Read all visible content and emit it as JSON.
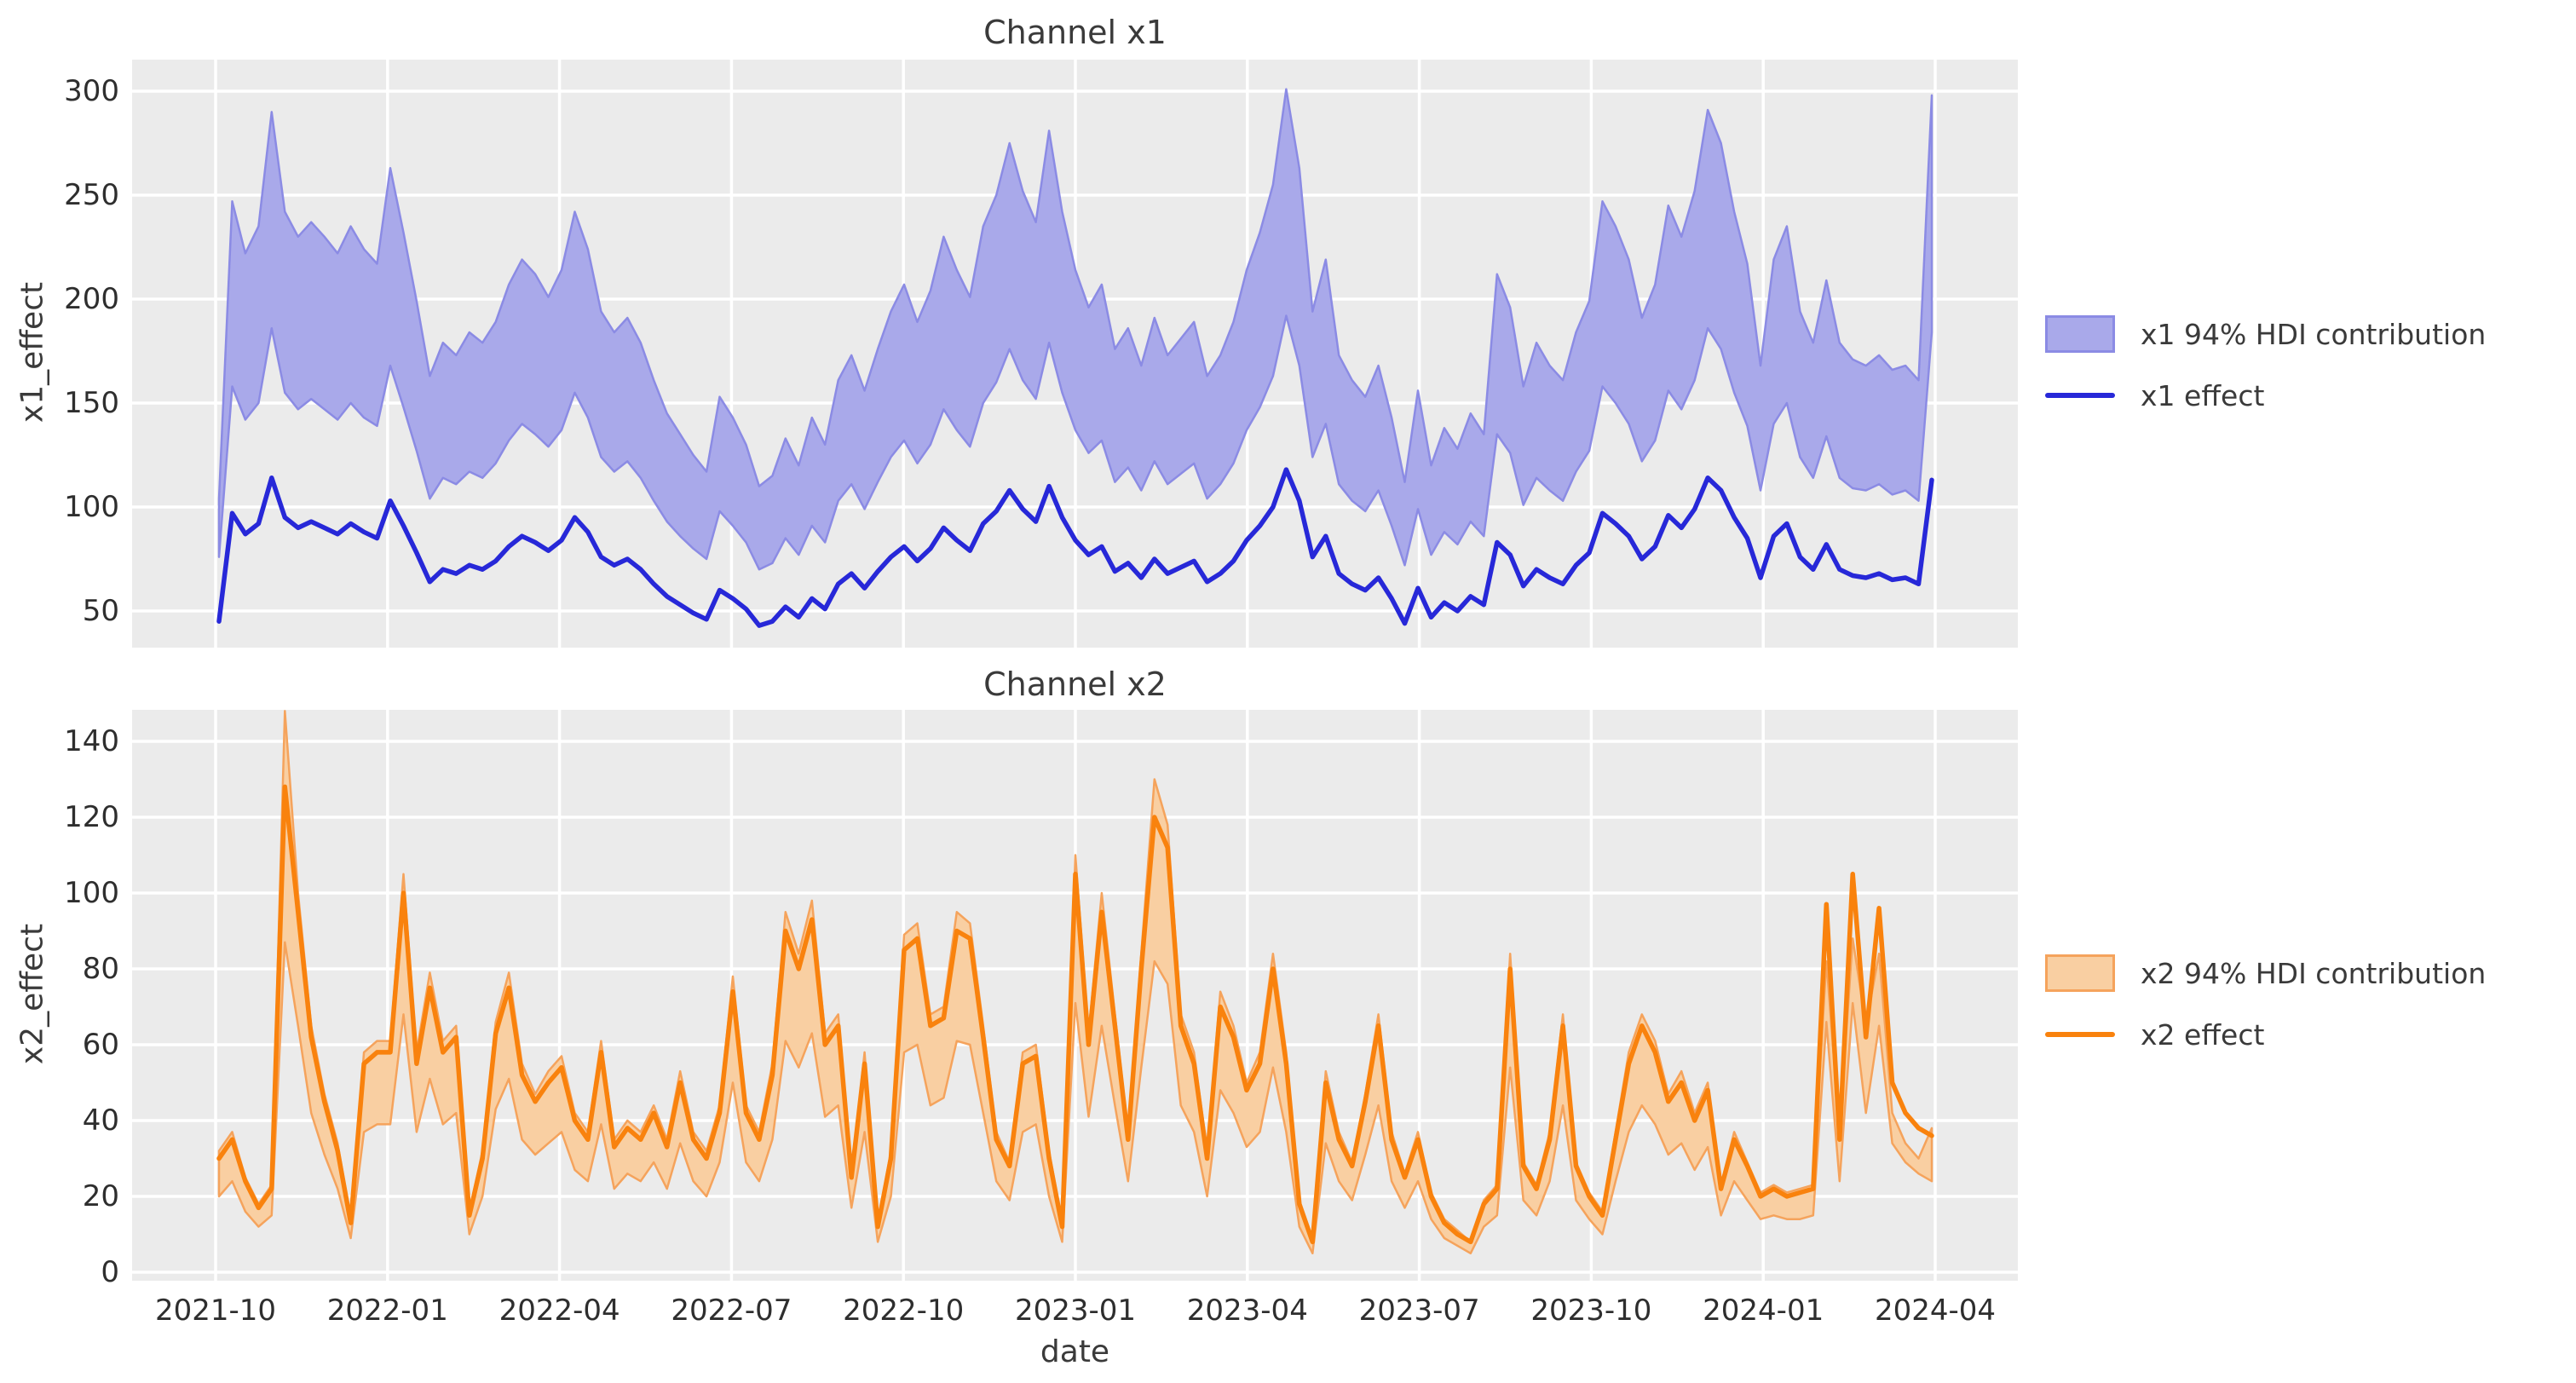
{
  "figure": {
    "background": "#ffffff",
    "axes_background": "#ebebeb",
    "grid_color": "#ffffff",
    "text_color": "#3a3a3a"
  },
  "chart_data": [
    {
      "type": "area",
      "title": "Channel x1",
      "ylabel": "x1_effect",
      "xlabel": "date",
      "grid": true,
      "legend_position": "right-of-plot",
      "x_start": "2021-10-03",
      "x_freq": "weekly",
      "n_points": 131,
      "x_tick_labels": [
        "2021-10",
        "2022-01",
        "2022-04",
        "2022-07",
        "2022-10",
        "2023-01",
        "2023-04",
        "2023-07",
        "2023-10",
        "2024-01",
        "2024-04"
      ],
      "y_ticks": [
        50,
        100,
        150,
        200,
        250,
        300
      ],
      "ylim": [
        32,
        316
      ],
      "line_color": "#2728d8",
      "band_fill": "#a9a9ea",
      "band_edge": "#8b8be4",
      "series": [
        {
          "name": "x1 94% HDI contribution",
          "role": "band",
          "upper": [
            104,
            247,
            222,
            235,
            290,
            242,
            230,
            237,
            230,
            222,
            235,
            224,
            217,
            263,
            232,
            199,
            163,
            179,
            173,
            184,
            179,
            189,
            207,
            219,
            212,
            201,
            214,
            242,
            224,
            194,
            184,
            191,
            179,
            161,
            145,
            135,
            125,
            117,
            153,
            143,
            130,
            110,
            115,
            133,
            120,
            143,
            130,
            161,
            173,
            156,
            176,
            194,
            207,
            189,
            204,
            230,
            214,
            201,
            235,
            250,
            275,
            252,
            237,
            281,
            242,
            214,
            196,
            207,
            176,
            186,
            168,
            191,
            173,
            181,
            189,
            163,
            173,
            189,
            214,
            232,
            255,
            301,
            263,
            194,
            219,
            173,
            161,
            153,
            168,
            143,
            112,
            156,
            120,
            138,
            128,
            145,
            135,
            212,
            196,
            158,
            179,
            168,
            161,
            184,
            199,
            247,
            235,
            219,
            191,
            207,
            245,
            230,
            252,
            291,
            275,
            242,
            217,
            168,
            219,
            235,
            194,
            179,
            209,
            179,
            171,
            168,
            173,
            166,
            168,
            161,
            298
          ],
          "lower": [
            76,
            158,
            142,
            150,
            186,
            155,
            147,
            152,
            147,
            142,
            150,
            143,
            139,
            168,
            148,
            127,
            104,
            114,
            111,
            117,
            114,
            121,
            132,
            140,
            135,
            129,
            137,
            155,
            143,
            124,
            117,
            122,
            114,
            103,
            93,
            86,
            80,
            75,
            98,
            91,
            83,
            70,
            73,
            85,
            77,
            91,
            83,
            103,
            111,
            99,
            112,
            124,
            132,
            121,
            130,
            147,
            137,
            129,
            150,
            160,
            176,
            161,
            152,
            179,
            155,
            137,
            126,
            132,
            112,
            119,
            108,
            122,
            111,
            116,
            121,
            104,
            111,
            121,
            137,
            148,
            163,
            192,
            168,
            124,
            140,
            111,
            103,
            98,
            108,
            91,
            72,
            99,
            77,
            88,
            82,
            93,
            86,
            135,
            126,
            101,
            114,
            108,
            103,
            117,
            127,
            158,
            150,
            140,
            122,
            132,
            156,
            147,
            161,
            186,
            176,
            155,
            139,
            108,
            140,
            150,
            124,
            114,
            134,
            114,
            109,
            108,
            111,
            106,
            108,
            103,
            184
          ]
        },
        {
          "name": "x1 effect",
          "role": "line",
          "values": [
            45,
            97,
            87,
            92,
            114,
            95,
            90,
            93,
            90,
            87,
            92,
            88,
            85,
            103,
            91,
            78,
            64,
            70,
            68,
            72,
            70,
            74,
            81,
            86,
            83,
            79,
            84,
            95,
            88,
            76,
            72,
            75,
            70,
            63,
            57,
            53,
            49,
            46,
            60,
            56,
            51,
            43,
            45,
            52,
            47,
            56,
            51,
            63,
            68,
            61,
            69,
            76,
            81,
            74,
            80,
            90,
            84,
            79,
            92,
            98,
            108,
            99,
            93,
            110,
            95,
            84,
            77,
            81,
            69,
            73,
            66,
            75,
            68,
            71,
            74,
            64,
            68,
            74,
            84,
            91,
            100,
            118,
            103,
            76,
            86,
            68,
            63,
            60,
            66,
            56,
            44,
            61,
            47,
            54,
            50,
            57,
            53,
            83,
            77,
            62,
            70,
            66,
            63,
            72,
            78,
            97,
            92,
            86,
            75,
            81,
            96,
            90,
            99,
            114,
            108,
            95,
            85,
            66,
            86,
            92,
            76,
            70,
            82,
            70,
            67,
            66,
            68,
            65,
            66,
            63,
            113
          ]
        }
      ]
    },
    {
      "type": "area",
      "title": "Channel x2",
      "ylabel": "x2_effect",
      "xlabel": "date",
      "grid": true,
      "legend_position": "right-of-plot",
      "x_start": "2021-10-03",
      "x_freq": "weekly",
      "n_points": 131,
      "x_tick_labels": [
        "2021-10",
        "2022-01",
        "2022-04",
        "2022-07",
        "2022-10",
        "2023-01",
        "2023-04",
        "2023-07",
        "2023-10",
        "2024-01",
        "2024-04"
      ],
      "y_ticks": [
        0,
        20,
        40,
        60,
        80,
        100,
        120,
        140
      ],
      "ylim": [
        -2,
        148
      ],
      "line_color": "#f9820d",
      "band_fill": "#f9cfa2",
      "band_edge": "#f5a35c",
      "series": [
        {
          "name": "x2 94% HDI contribution",
          "role": "band",
          "upper": [
            32,
            37,
            25,
            18,
            23,
            148,
            100,
            65,
            47,
            34,
            14,
            58,
            61,
            61,
            105,
            58,
            79,
            61,
            65,
            16,
            32,
            66,
            79,
            55,
            47,
            53,
            57,
            42,
            37,
            61,
            35,
            40,
            37,
            44,
            35,
            53,
            37,
            32,
            44,
            78,
            44,
            37,
            55,
            95,
            84,
            98,
            63,
            68,
            26,
            58,
            13,
            32,
            89,
            92,
            68,
            70,
            95,
            92,
            65,
            37,
            29,
            58,
            60,
            32,
            13,
            110,
            63,
            100,
            68,
            37,
            84,
            130,
            118,
            68,
            58,
            32,
            74,
            65,
            50,
            58,
            84,
            58,
            19,
            8,
            53,
            37,
            29,
            47,
            68,
            37,
            26,
            37,
            21,
            14,
            11,
            8,
            19,
            23,
            84,
            29,
            23,
            37,
            68,
            29,
            21,
            16,
            37,
            58,
            68,
            61,
            47,
            53,
            42,
            50,
            23,
            37,
            29,
            21,
            23,
            21,
            22,
            23,
            82,
            37,
            88,
            65,
            84,
            42,
            34,
            30,
            38
          ],
          "lower": [
            20,
            24,
            16,
            12,
            15,
            87,
            65,
            42,
            31,
            22,
            9,
            37,
            39,
            39,
            68,
            37,
            51,
            39,
            42,
            10,
            20,
            43,
            51,
            35,
            31,
            34,
            37,
            27,
            24,
            39,
            22,
            26,
            24,
            29,
            22,
            34,
            24,
            20,
            29,
            50,
            29,
            24,
            35,
            61,
            54,
            63,
            41,
            44,
            17,
            37,
            8,
            20,
            58,
            60,
            44,
            46,
            61,
            60,
            42,
            24,
            19,
            37,
            39,
            20,
            8,
            71,
            41,
            65,
            44,
            24,
            54,
            82,
            76,
            44,
            37,
            20,
            48,
            42,
            33,
            37,
            54,
            37,
            12,
            5,
            34,
            24,
            19,
            31,
            44,
            24,
            17,
            24,
            14,
            9,
            7,
            5,
            12,
            15,
            54,
            19,
            15,
            24,
            44,
            19,
            14,
            10,
            24,
            37,
            44,
            39,
            31,
            34,
            27,
            33,
            15,
            24,
            19,
            14,
            15,
            14,
            14,
            15,
            66,
            24,
            71,
            42,
            65,
            34,
            29,
            26,
            24
          ]
        },
        {
          "name": "x2 effect",
          "role": "line",
          "values": [
            30,
            35,
            24,
            17,
            22,
            128,
            95,
            62,
            45,
            32,
            13,
            55,
            58,
            58,
            100,
            55,
            75,
            58,
            62,
            15,
            30,
            63,
            75,
            52,
            45,
            50,
            54,
            40,
            35,
            58,
            33,
            38,
            35,
            42,
            33,
            50,
            35,
            30,
            42,
            74,
            42,
            35,
            52,
            90,
            80,
            93,
            60,
            65,
            25,
            55,
            12,
            30,
            85,
            88,
            65,
            67,
            90,
            88,
            62,
            35,
            28,
            55,
            57,
            30,
            12,
            105,
            60,
            95,
            65,
            35,
            80,
            120,
            112,
            65,
            55,
            30,
            70,
            62,
            48,
            55,
            80,
            55,
            18,
            8,
            50,
            35,
            28,
            45,
            65,
            35,
            25,
            35,
            20,
            13,
            10,
            8,
            18,
            22,
            80,
            28,
            22,
            35,
            65,
            28,
            20,
            15,
            35,
            55,
            65,
            58,
            45,
            50,
            40,
            48,
            22,
            35,
            28,
            20,
            22,
            20,
            21,
            22,
            97,
            35,
            105,
            62,
            96,
            50,
            42,
            38,
            36
          ]
        }
      ]
    }
  ]
}
